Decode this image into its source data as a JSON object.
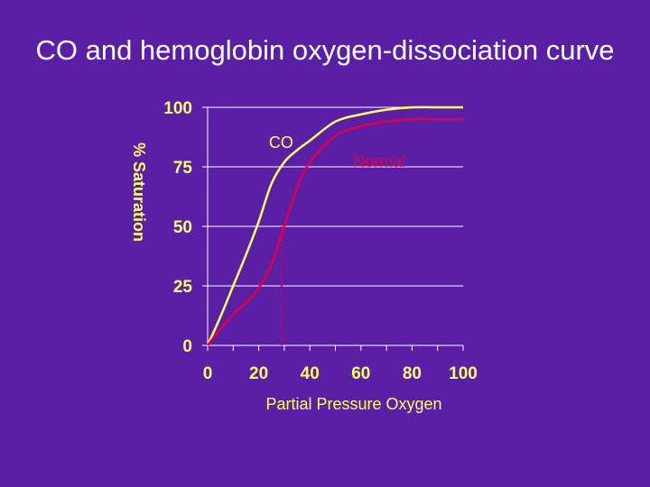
{
  "slide": {
    "title": "CO and hemoglobin oxygen-dissociation curve"
  },
  "colors": {
    "background": "#5b1fa6",
    "axis_text": "#ffff66",
    "co_curve": "#ffff66",
    "normal_curve": "#e0004a",
    "grid": "#ffffff"
  },
  "chart_data": {
    "type": "line",
    "title": "CO and hemoglobin oxygen-dissociation curve",
    "xlabel": "Partial Pressure Oxygen",
    "ylabel": "% Saturation",
    "xlim": [
      0,
      100
    ],
    "ylim": [
      0,
      100
    ],
    "xticks": [
      0,
      20,
      40,
      60,
      80,
      100
    ],
    "yticks": [
      0,
      25,
      50,
      75,
      100
    ],
    "grid": "horizontal",
    "series": [
      {
        "name": "CO",
        "color": "#ffff66",
        "x": [
          0,
          5,
          10,
          15,
          20,
          25,
          30,
          35,
          40,
          50,
          60,
          70,
          80,
          90,
          100
        ],
        "y": [
          0,
          12,
          25,
          38,
          52,
          68,
          77,
          82,
          86,
          94,
          97,
          99,
          100,
          100,
          100
        ]
      },
      {
        "name": "Normal",
        "color": "#e0004a",
        "x": [
          0,
          5,
          10,
          15,
          20,
          25,
          30,
          35,
          40,
          50,
          60,
          70,
          80,
          90,
          100
        ],
        "y": [
          0,
          7,
          13,
          18,
          24,
          34,
          50,
          66,
          77,
          88,
          92,
          94,
          95,
          95,
          95
        ]
      }
    ],
    "annotations": [
      {
        "text": "CO",
        "x": 24,
        "y": 83,
        "color": "#ffff66"
      },
      {
        "text": "Normal",
        "x": 57,
        "y": 75,
        "color": "#e0004a"
      }
    ],
    "reference_line": {
      "x": 29,
      "y_from": 0,
      "y_to": 50,
      "style": "dotted",
      "color": "#e0004a"
    }
  }
}
